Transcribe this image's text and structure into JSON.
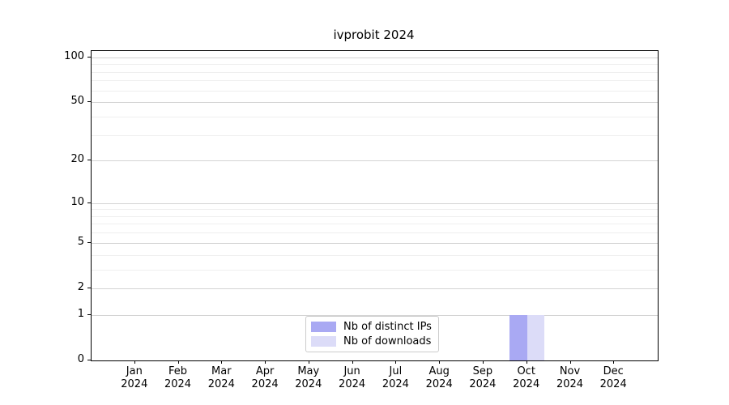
{
  "figure": {
    "title": "ivprobit 2024"
  },
  "chart_data": {
    "type": "bar",
    "title": "ivprobit 2024",
    "categories": [
      "Jan 2024",
      "Feb 2024",
      "Mar 2024",
      "Apr 2024",
      "May 2024",
      "Jun 2024",
      "Jul 2024",
      "Aug 2024",
      "Sep 2024",
      "Oct 2024",
      "Nov 2024",
      "Dec 2024"
    ],
    "series": [
      {
        "name": "Nb of distinct IPs",
        "color": "#a9a9f3",
        "values": [
          0,
          0,
          0,
          0,
          0,
          0,
          0,
          0,
          0,
          1,
          0,
          0
        ]
      },
      {
        "name": "Nb of downloads",
        "color": "#dcdcf8",
        "values": [
          0,
          0,
          0,
          0,
          0,
          0,
          0,
          0,
          0,
          1,
          0,
          0
        ]
      }
    ],
    "xlabel": "",
    "ylabel": "",
    "y_scale": "log1p",
    "ylim": [
      0,
      110
    ],
    "y_major_ticks": [
      0,
      1,
      2,
      5,
      10,
      20,
      50,
      100
    ],
    "y_minor_gridlines": [
      3,
      4,
      6,
      7,
      8,
      9,
      30,
      40,
      60,
      70,
      80,
      90
    ],
    "grid": "horizontal-only",
    "legend_position": "lower center inside",
    "colors": {
      "major_grid": "#d4d4d4",
      "minor_grid": "#efefef",
      "axis": "#000000",
      "background": "#ffffff"
    }
  }
}
